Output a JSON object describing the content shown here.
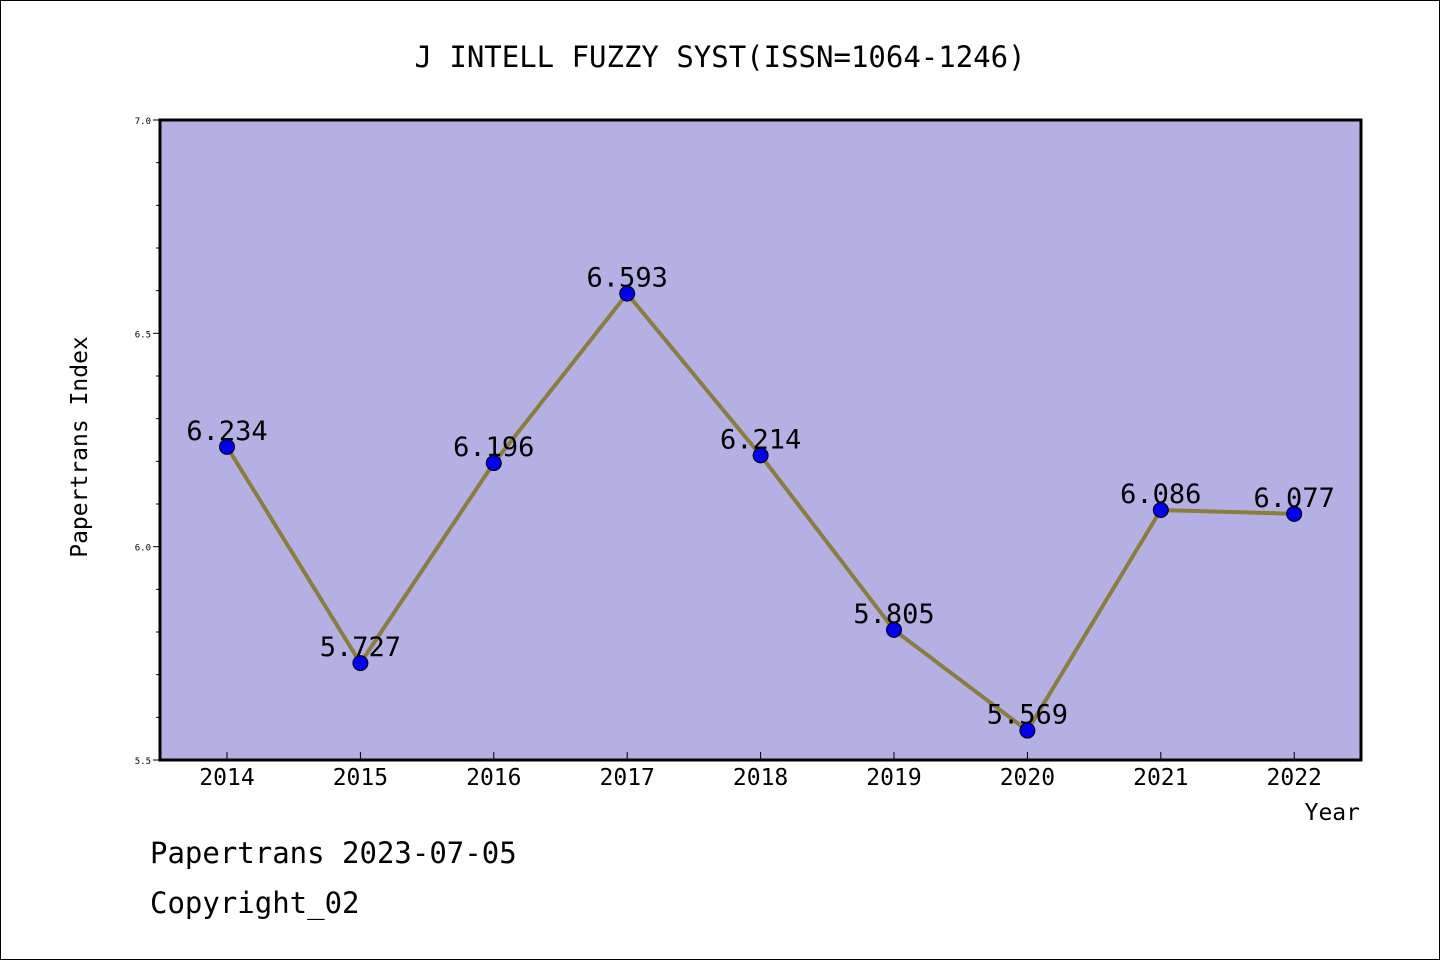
{
  "chart_data": {
    "type": "line",
    "title": "J INTELL FUZZY SYST(ISSN=1064-1246)",
    "xlabel": "Year",
    "ylabel": "Papertrans Index",
    "categories": [
      "2014",
      "2015",
      "2016",
      "2017",
      "2018",
      "2019",
      "2020",
      "2021",
      "2022"
    ],
    "values": [
      6.234,
      5.727,
      6.196,
      6.593,
      6.214,
      5.805,
      5.569,
      6.086,
      6.077
    ],
    "data_labels": [
      "6.234",
      "5.727",
      "6.196",
      "6.593",
      "6.214",
      "5.805",
      "5.569",
      "6.086",
      "6.077"
    ],
    "ylim": [
      5.5,
      7.0
    ],
    "yticks": [
      "5.5",
      "6.0",
      "6.5",
      "7.0"
    ],
    "grid": false,
    "colors": {
      "plot_background": "#b5b0e3",
      "line": "#8b7d3c",
      "marker": "#0000ee"
    }
  },
  "footer": {
    "line1": "Papertrans 2023-07-05",
    "line2": "Copyright_02"
  }
}
